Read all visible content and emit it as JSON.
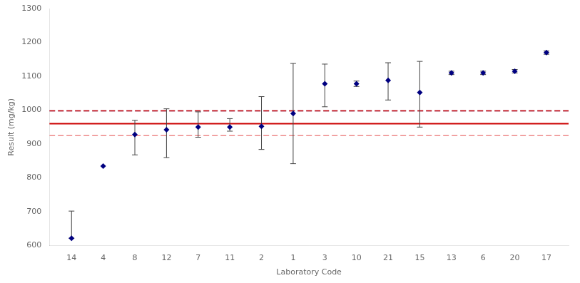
{
  "chart_data": {
    "type": "scatter",
    "x_label": "Laboratory Code",
    "y_label": "Result (mg/kg)",
    "categories": [
      "14",
      "4",
      "8",
      "12",
      "7",
      "11",
      "2",
      "1",
      "3",
      "10",
      "21",
      "15",
      "13",
      "6",
      "20",
      "17"
    ],
    "series": [
      {
        "values": [
          622,
          835,
          928,
          942,
          950,
          950,
          952,
          990,
          1078,
          1078,
          1088,
          1052,
          1110,
          1110,
          1115,
          1170
        ],
        "color": "#000080",
        "marker": "diamond",
        "error_bars": {
          "low": [
            0,
            0,
            60,
            82,
            30,
            12,
            68,
            148,
            68,
            8,
            58,
            102,
            5,
            5,
            5,
            5
          ],
          "high": [
            80,
            0,
            42,
            62,
            45,
            25,
            88,
            148,
            58,
            8,
            52,
            92,
            5,
            5,
            5,
            5
          ],
          "color": "#444444"
        }
      }
    ],
    "reference_lines": [
      {
        "value": 998,
        "color": "#7777bb",
        "line_style": "dashed"
      },
      {
        "value": 998,
        "color": "#cc0000",
        "line_style": "dashed"
      },
      {
        "value": 960,
        "color": "#cc0000",
        "line_style": "solid"
      },
      {
        "value": 925,
        "color": "#ee8888",
        "line_style": "dashed"
      }
    ],
    "ylim": [
      600,
      1300
    ],
    "yticks": [
      600,
      700,
      800,
      900,
      1000,
      1100,
      1200,
      1300
    ],
    "grid": false
  }
}
